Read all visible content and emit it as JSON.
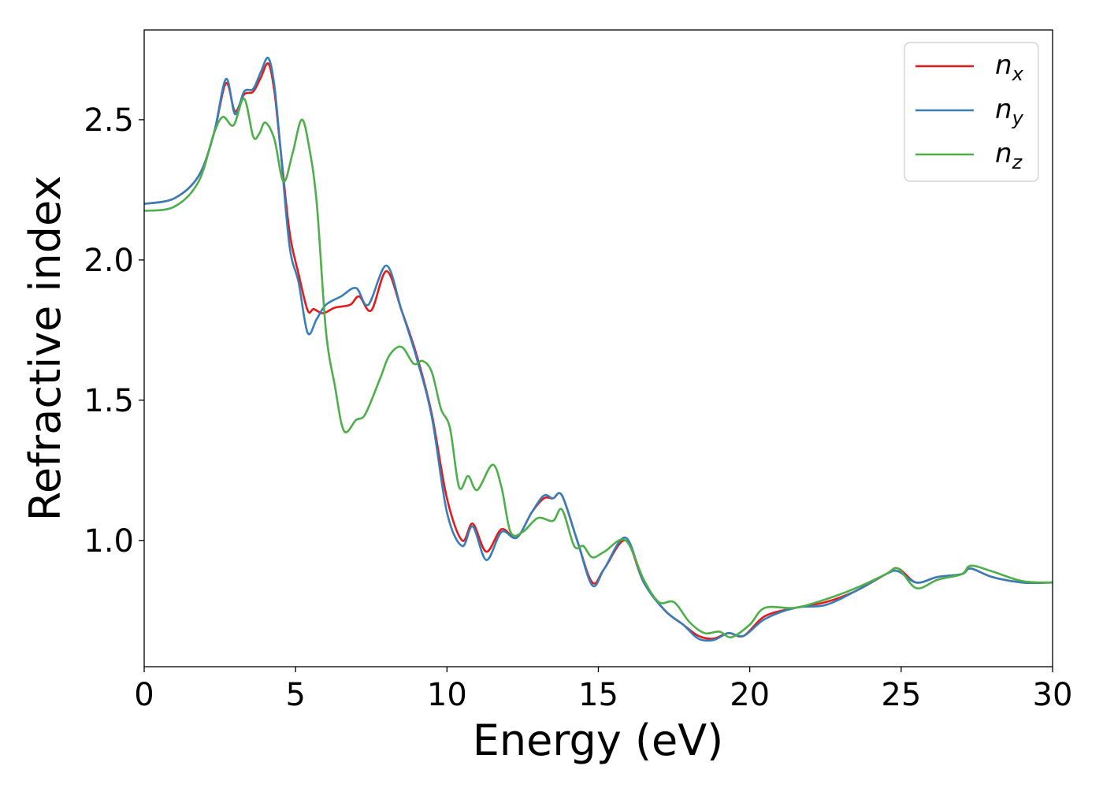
{
  "chart_data": {
    "type": "line",
    "title": "",
    "xlabel": "Energy (eV)",
    "ylabel": "Refractive index",
    "xlim": [
      0,
      30
    ],
    "ylim": [
      0.55,
      2.82
    ],
    "xticks": [
      0,
      5,
      10,
      15,
      20,
      25,
      30
    ],
    "xtick_labels": [
      "0",
      "5",
      "10",
      "15",
      "20",
      "25",
      "30"
    ],
    "yticks": [
      1.0,
      1.5,
      2.0,
      2.5
    ],
    "ytick_labels": [
      "1.0",
      "1.5",
      "2.0",
      "2.5"
    ],
    "grid": false,
    "legend_position": "top-right",
    "series": [
      {
        "name": "n_x",
        "label_base": "n",
        "label_sub": "x",
        "color": "#e41a1c",
        "points": [
          [
            0,
            2.2
          ],
          [
            1,
            2.22
          ],
          [
            1.8,
            2.3
          ],
          [
            2.3,
            2.45
          ],
          [
            2.7,
            2.63
          ],
          [
            3.0,
            2.53
          ],
          [
            3.3,
            2.59
          ],
          [
            3.6,
            2.6
          ],
          [
            3.85,
            2.65
          ],
          [
            4.1,
            2.7
          ],
          [
            4.3,
            2.6
          ],
          [
            4.5,
            2.4
          ],
          [
            4.8,
            2.1
          ],
          [
            5.1,
            1.95
          ],
          [
            5.4,
            1.82
          ],
          [
            5.6,
            1.825
          ],
          [
            5.9,
            1.81
          ],
          [
            6.3,
            1.83
          ],
          [
            6.8,
            1.84
          ],
          [
            7.1,
            1.87
          ],
          [
            7.5,
            1.82
          ],
          [
            8.0,
            1.96
          ],
          [
            8.5,
            1.82
          ],
          [
            9.0,
            1.66
          ],
          [
            9.5,
            1.45
          ],
          [
            10.0,
            1.15
          ],
          [
            10.5,
            1.0
          ],
          [
            10.85,
            1.06
          ],
          [
            11.3,
            0.96
          ],
          [
            11.8,
            1.04
          ],
          [
            12.3,
            1.01
          ],
          [
            12.8,
            1.1
          ],
          [
            13.2,
            1.15
          ],
          [
            13.5,
            1.15
          ],
          [
            13.8,
            1.16
          ],
          [
            14.3,
            1.0
          ],
          [
            14.8,
            0.85
          ],
          [
            15.2,
            0.9
          ],
          [
            15.9,
            1.0
          ],
          [
            16.5,
            0.85
          ],
          [
            17.2,
            0.75
          ],
          [
            17.8,
            0.7
          ],
          [
            18.3,
            0.66
          ],
          [
            18.8,
            0.65
          ],
          [
            19.3,
            0.67
          ],
          [
            19.8,
            0.66
          ],
          [
            20.5,
            0.73
          ],
          [
            21.5,
            0.76
          ],
          [
            22.5,
            0.78
          ],
          [
            23.5,
            0.82
          ],
          [
            24.5,
            0.88
          ],
          [
            24.9,
            0.9
          ],
          [
            25.5,
            0.85
          ],
          [
            26.2,
            0.87
          ],
          [
            27.0,
            0.88
          ],
          [
            27.3,
            0.9
          ],
          [
            28.0,
            0.87
          ],
          [
            29.0,
            0.85
          ],
          [
            30.0,
            0.85
          ]
        ]
      },
      {
        "name": "n_y",
        "label_base": "n",
        "label_sub": "y",
        "color": "#377eb8",
        "points": [
          [
            0,
            2.2
          ],
          [
            1,
            2.22
          ],
          [
            1.8,
            2.3
          ],
          [
            2.3,
            2.45
          ],
          [
            2.7,
            2.645
          ],
          [
            3.0,
            2.52
          ],
          [
            3.3,
            2.6
          ],
          [
            3.6,
            2.61
          ],
          [
            3.85,
            2.67
          ],
          [
            4.1,
            2.72
          ],
          [
            4.3,
            2.62
          ],
          [
            4.5,
            2.4
          ],
          [
            4.8,
            2.05
          ],
          [
            5.1,
            1.92
          ],
          [
            5.4,
            1.74
          ],
          [
            5.7,
            1.79
          ],
          [
            6.0,
            1.84
          ],
          [
            6.5,
            1.87
          ],
          [
            7.0,
            1.9
          ],
          [
            7.4,
            1.84
          ],
          [
            8.0,
            1.98
          ],
          [
            8.5,
            1.82
          ],
          [
            9.0,
            1.65
          ],
          [
            9.5,
            1.44
          ],
          [
            10.0,
            1.1
          ],
          [
            10.5,
            0.98
          ],
          [
            10.85,
            1.05
          ],
          [
            11.3,
            0.93
          ],
          [
            11.8,
            1.03
          ],
          [
            12.3,
            1.01
          ],
          [
            12.8,
            1.1
          ],
          [
            13.2,
            1.16
          ],
          [
            13.5,
            1.15
          ],
          [
            13.8,
            1.16
          ],
          [
            14.3,
            1.0
          ],
          [
            14.8,
            0.84
          ],
          [
            15.2,
            0.9
          ],
          [
            15.9,
            1.01
          ],
          [
            16.5,
            0.85
          ],
          [
            17.2,
            0.75
          ],
          [
            17.8,
            0.7
          ],
          [
            18.3,
            0.65
          ],
          [
            18.8,
            0.645
          ],
          [
            19.3,
            0.67
          ],
          [
            19.8,
            0.66
          ],
          [
            20.5,
            0.72
          ],
          [
            21.5,
            0.76
          ],
          [
            22.5,
            0.77
          ],
          [
            23.5,
            0.82
          ],
          [
            24.5,
            0.88
          ],
          [
            24.9,
            0.89
          ],
          [
            25.5,
            0.85
          ],
          [
            26.2,
            0.87
          ],
          [
            27.0,
            0.88
          ],
          [
            27.3,
            0.9
          ],
          [
            28.0,
            0.87
          ],
          [
            29.0,
            0.85
          ],
          [
            30.0,
            0.85
          ]
        ]
      },
      {
        "name": "n_z",
        "label_base": "n",
        "label_sub": "z",
        "color": "#4daf4a",
        "points": [
          [
            0,
            2.175
          ],
          [
            1,
            2.19
          ],
          [
            1.8,
            2.28
          ],
          [
            2.3,
            2.45
          ],
          [
            2.6,
            2.51
          ],
          [
            2.95,
            2.48
          ],
          [
            3.3,
            2.575
          ],
          [
            3.6,
            2.44
          ],
          [
            3.8,
            2.45
          ],
          [
            4.0,
            2.49
          ],
          [
            4.3,
            2.43
          ],
          [
            4.6,
            2.28
          ],
          [
            4.9,
            2.38
          ],
          [
            5.2,
            2.5
          ],
          [
            5.45,
            2.4
          ],
          [
            5.7,
            2.2
          ],
          [
            6.0,
            1.75
          ],
          [
            6.3,
            1.55
          ],
          [
            6.6,
            1.39
          ],
          [
            7.0,
            1.43
          ],
          [
            7.3,
            1.45
          ],
          [
            7.8,
            1.58
          ],
          [
            8.1,
            1.66
          ],
          [
            8.5,
            1.69
          ],
          [
            8.9,
            1.63
          ],
          [
            9.2,
            1.64
          ],
          [
            9.5,
            1.6
          ],
          [
            9.8,
            1.47
          ],
          [
            10.1,
            1.4
          ],
          [
            10.4,
            1.19
          ],
          [
            10.7,
            1.23
          ],
          [
            11.0,
            1.18
          ],
          [
            11.5,
            1.27
          ],
          [
            11.8,
            1.19
          ],
          [
            12.1,
            1.03
          ],
          [
            12.5,
            1.03
          ],
          [
            13.0,
            1.08
          ],
          [
            13.5,
            1.07
          ],
          [
            13.8,
            1.11
          ],
          [
            14.2,
            0.98
          ],
          [
            14.5,
            0.98
          ],
          [
            14.8,
            0.94
          ],
          [
            15.2,
            0.96
          ],
          [
            15.9,
            1.0
          ],
          [
            16.5,
            0.86
          ],
          [
            17.0,
            0.78
          ],
          [
            17.5,
            0.78
          ],
          [
            18.0,
            0.71
          ],
          [
            18.5,
            0.67
          ],
          [
            19.0,
            0.675
          ],
          [
            19.4,
            0.655
          ],
          [
            20.0,
            0.7
          ],
          [
            20.5,
            0.76
          ],
          [
            21.5,
            0.76
          ],
          [
            22.5,
            0.79
          ],
          [
            23.5,
            0.83
          ],
          [
            24.5,
            0.88
          ],
          [
            24.9,
            0.9
          ],
          [
            25.5,
            0.83
          ],
          [
            26.2,
            0.86
          ],
          [
            27.0,
            0.88
          ],
          [
            27.3,
            0.91
          ],
          [
            28.0,
            0.89
          ],
          [
            29.0,
            0.855
          ],
          [
            30.0,
            0.85
          ]
        ]
      }
    ]
  }
}
